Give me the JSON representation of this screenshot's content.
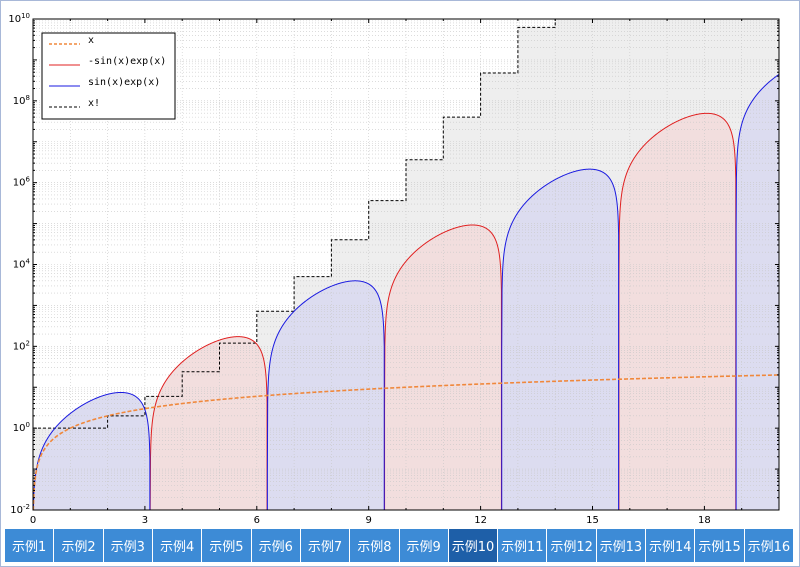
{
  "chart_data": {
    "type": "line",
    "y_scale": "log",
    "xlim": [
      0,
      20
    ],
    "ylim": [
      0.01,
      10000000000
    ],
    "x_ticks": [
      "0",
      "3",
      "6",
      "9",
      "12",
      "15",
      "18"
    ],
    "y_ticks": [
      {
        "base": "10",
        "exp": "-2"
      },
      {
        "base": "10",
        "exp": "0"
      },
      {
        "base": "10",
        "exp": "2"
      },
      {
        "base": "10",
        "exp": "4"
      },
      {
        "base": "10",
        "exp": "6"
      },
      {
        "base": "10",
        "exp": "8"
      },
      {
        "base": "10",
        "exp": "10"
      }
    ],
    "grid": true,
    "legend_position": "top-left",
    "series": [
      {
        "name": "x",
        "color": "#f0883c",
        "style": "dashed",
        "fill": "none",
        "function": "x"
      },
      {
        "name": "-sin(x)exp(x)",
        "color": "#e02020",
        "style": "solid",
        "fill": "#f2dede",
        "function": "-sin(x)*exp(x)"
      },
      {
        "name": " sin(x)exp(x)",
        "color": "#1a1ae0",
        "style": "solid",
        "fill": "#dcdcf0",
        "function": "sin(x)*exp(x)"
      },
      {
        "name": "x!",
        "color": "#000000",
        "style": "dashed",
        "fill": "#eeeeee",
        "function": "floor(x)!"
      }
    ]
  },
  "tabs": [
    "示例1",
    "示例2",
    "示例3",
    "示例4",
    "示例5",
    "示例6",
    "示例7",
    "示例8",
    "示例9",
    "示例10",
    "示例11",
    "示例12",
    "示例13",
    "示例14",
    "示例15",
    "示例16"
  ],
  "active_tab": 9
}
